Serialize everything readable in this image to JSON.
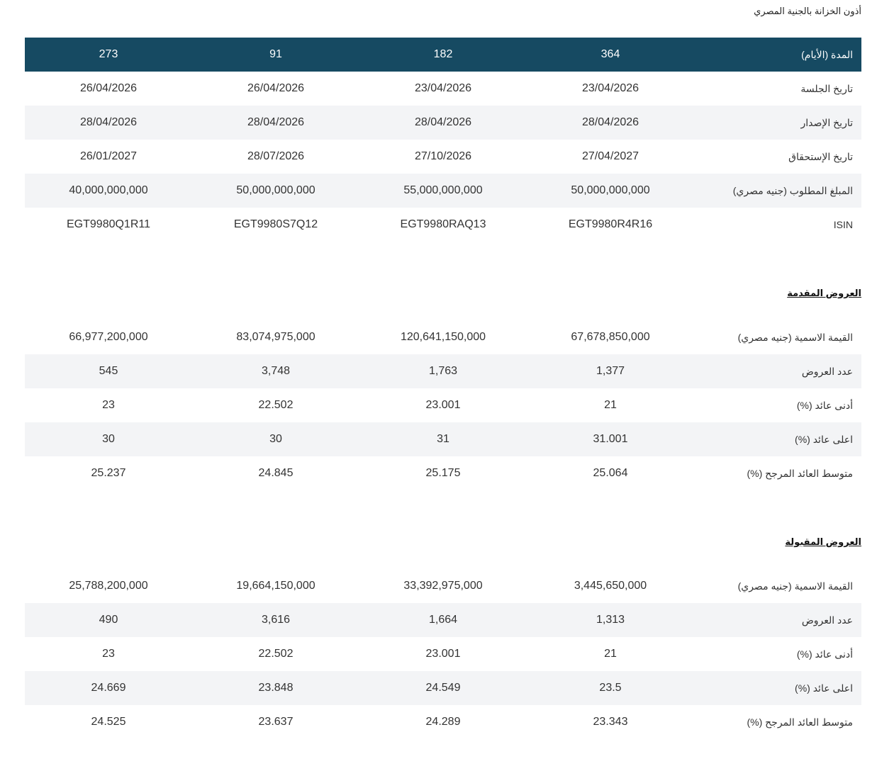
{
  "page_title": "أذون الخزانة بالجنية المصري",
  "header": {
    "label": "المدة (الأيام)",
    "values": [
      "364",
      "182",
      "91",
      "273"
    ]
  },
  "info_rows": [
    {
      "label": "تاريخ الجلسة",
      "values": [
        "23/04/2026",
        "23/04/2026",
        "26/04/2026",
        "26/04/2026"
      ]
    },
    {
      "label": "تاريخ الإصدار",
      "values": [
        "28/04/2026",
        "28/04/2026",
        "28/04/2026",
        "28/04/2026"
      ]
    },
    {
      "label": "تاريخ الإستحقاق",
      "values": [
        "27/04/2027",
        "27/10/2026",
        "28/07/2026",
        "26/01/2027"
      ]
    },
    {
      "label": "المبلغ المطلوب (جنيه مصري)",
      "values": [
        "50,000,000,000",
        "55,000,000,000",
        "50,000,000,000",
        "40,000,000,000"
      ]
    },
    {
      "label": "ISIN",
      "values": [
        "EGT9980R4R16",
        "EGT9980RAQ13",
        "EGT9980S7Q12",
        "EGT9980Q1R11"
      ]
    }
  ],
  "offered": {
    "heading": "العروض المقدمة",
    "rows": [
      {
        "label": "القيمة الاسمية (جنيه مصري)",
        "values": [
          "67,678,850,000",
          "120,641,150,000",
          "83,074,975,000",
          "66,977,200,000"
        ]
      },
      {
        "label": "عدد العروض",
        "values": [
          "1,377",
          "1,763",
          "3,748",
          "545"
        ]
      },
      {
        "label": "أدنى عائد (%)",
        "values": [
          "21",
          "23.001",
          "22.502",
          "23"
        ]
      },
      {
        "label": "اعلى عائد (%)",
        "values": [
          "31.001",
          "31",
          "30",
          "30"
        ]
      },
      {
        "label": "متوسط العائد المرجح (%)",
        "values": [
          "25.064",
          "25.175",
          "24.845",
          "25.237"
        ]
      }
    ]
  },
  "accepted": {
    "heading": "العروض المقبولة",
    "rows": [
      {
        "label": "القيمة الاسمية (جنيه مصري)",
        "values": [
          "3,445,650,000",
          "33,392,975,000",
          "19,664,150,000",
          "25,788,200,000"
        ]
      },
      {
        "label": "عدد العروض",
        "values": [
          "1,313",
          "1,664",
          "3,616",
          "490"
        ]
      },
      {
        "label": "أدنى عائد (%)",
        "values": [
          "21",
          "23.001",
          "22.502",
          "23"
        ]
      },
      {
        "label": "اعلى عائد (%)",
        "values": [
          "23.5",
          "24.549",
          "23.848",
          "24.669"
        ]
      },
      {
        "label": "متوسط العائد المرجح (%)",
        "values": [
          "23.343",
          "24.289",
          "23.637",
          "24.525"
        ]
      }
    ]
  }
}
